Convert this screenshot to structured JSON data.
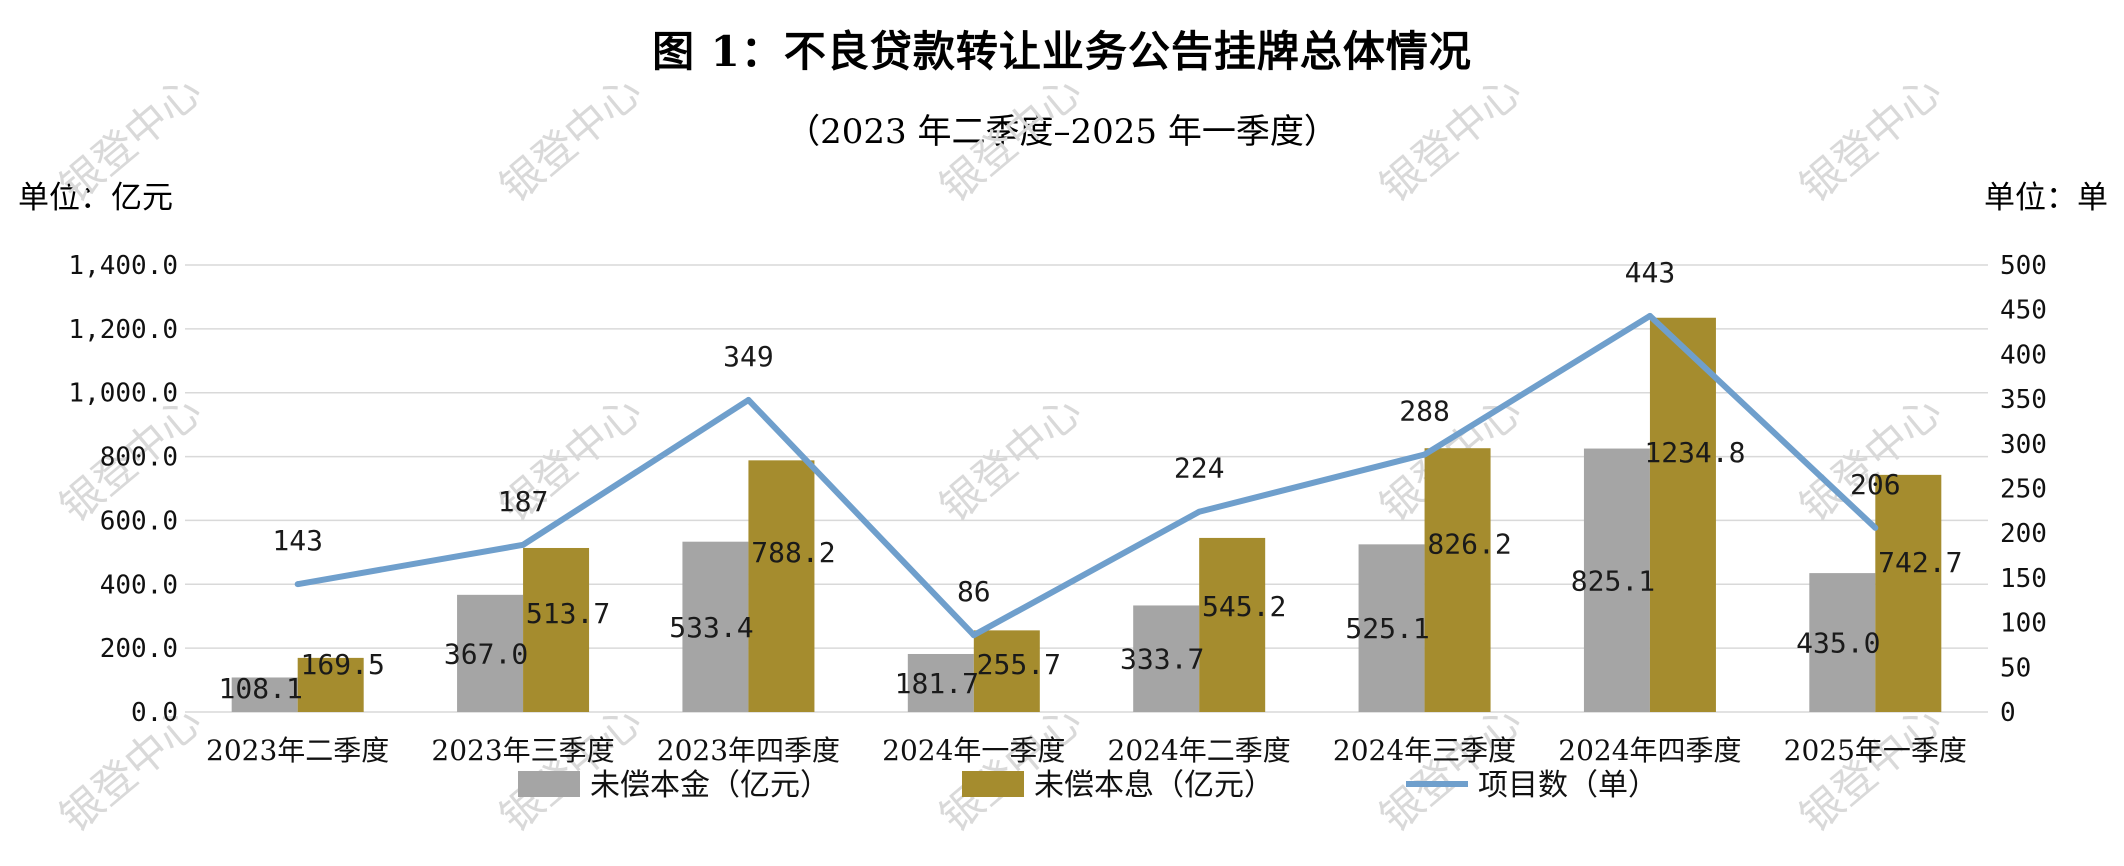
{
  "header": {
    "title": "图 1：不良贷款转让业务公告挂牌总体情况",
    "subtitle": "（2023 年二季度–2025 年一季度）",
    "left_unit": "单位：亿元",
    "right_unit": "单位：单"
  },
  "watermark": "银登中心",
  "colors": {
    "principal": "#a5a5a5",
    "interest": "#a58c2e",
    "count": "#6f9fcc",
    "grid": "#d9d9d9"
  },
  "chart_data": {
    "type": "bar",
    "title": "图 1：不良贷款转让业务公告挂牌总体情况",
    "subtitle": "（2023 年二季度–2025 年一季度）",
    "categories": [
      "2023年二季度",
      "2023年三季度",
      "2023年四季度",
      "2024年一季度",
      "2024年二季度",
      "2024年三季度",
      "2024年四季度",
      "2025年一季度"
    ],
    "y_left": {
      "label": "单位：亿元",
      "range": [
        0,
        1400
      ],
      "ticks": [
        "0.0",
        "200.0",
        "400.0",
        "600.0",
        "800.0",
        "1,000.0",
        "1,200.0",
        "1,400.0"
      ],
      "tick_values": [
        0,
        200,
        400,
        600,
        800,
        1000,
        1200,
        1400
      ]
    },
    "y_right": {
      "label": "单位：单",
      "range": [
        0,
        500
      ],
      "ticks": [
        "0",
        "50",
        "100",
        "150",
        "200",
        "250",
        "300",
        "350",
        "400",
        "450",
        "500"
      ],
      "tick_values": [
        0,
        50,
        100,
        150,
        200,
        250,
        300,
        350,
        400,
        450,
        500
      ]
    },
    "grid": true,
    "legend_position": "bottom",
    "series": [
      {
        "name": "未偿本金（亿元）",
        "type": "bar",
        "axis": "left",
        "color": "#a5a5a5",
        "values": [
          108.1,
          367.0,
          533.4,
          181.7,
          333.7,
          525.1,
          825.1,
          435.0
        ],
        "labels": [
          "108.1",
          "367.0",
          "533.4",
          "181.7",
          "333.7",
          "525.1",
          "825.1",
          "435.0"
        ]
      },
      {
        "name": "未偿本息（亿元）",
        "type": "bar",
        "axis": "left",
        "color": "#a58c2e",
        "values": [
          169.5,
          513.7,
          788.2,
          255.7,
          545.2,
          826.2,
          1234.8,
          742.7
        ],
        "labels": [
          "169.5",
          "513.7",
          "788.2",
          "255.7",
          "545.2",
          "826.2",
          "1234.8",
          "742.7"
        ]
      },
      {
        "name": "项目数（单）",
        "type": "line",
        "axis": "right",
        "color": "#6f9fcc",
        "values": [
          143,
          187,
          349,
          86,
          224,
          288,
          443,
          206
        ],
        "labels": [
          "143",
          "187",
          "349",
          "86",
          "224",
          "288",
          "443",
          "206"
        ]
      }
    ]
  }
}
